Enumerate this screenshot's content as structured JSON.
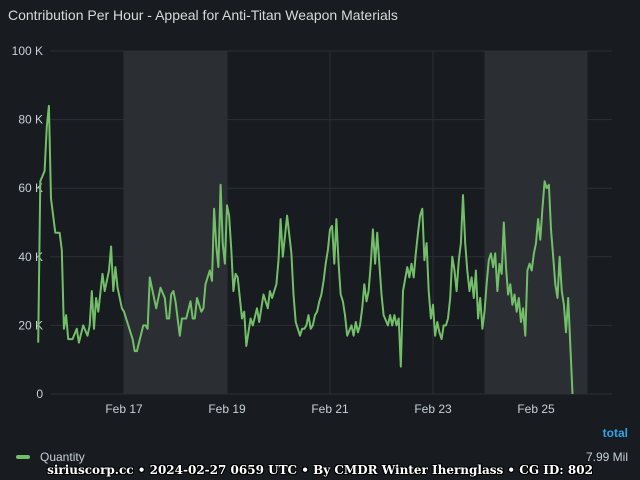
{
  "panel": {
    "title": "Contribution Per Hour - Appeal for Anti-Titan Weapon Materials",
    "legend_header": "total",
    "legend_value": "7.99 Mil",
    "credit": "siriuscorp.cc • 2024-02-27 0659 UTC • By CMDR Winter Ihernglass • CG ID: 802"
  },
  "colors": {
    "background": "#181b1f",
    "series": "#73bf69",
    "band": "#2b2e33",
    "grid": "#2c2f35",
    "legend_header": "#33a2e5"
  },
  "chart_data": {
    "type": "line",
    "title": "Contribution Per Hour - Appeal for Anti-Titan Weapon Materials",
    "xlabel": "",
    "ylabel": "",
    "xlim_days": [
      "2024-02-15 08:00",
      "2024-02-26 22:00"
    ],
    "ylim": [
      0,
      100000
    ],
    "y_ticks": [
      {
        "value": 0,
        "label": "0"
      },
      {
        "value": 20000,
        "label": "20 K"
      },
      {
        "value": 40000,
        "label": "40 K"
      },
      {
        "value": 60000,
        "label": "60 K"
      },
      {
        "value": 80000,
        "label": "80 K"
      },
      {
        "value": 100000,
        "label": "100 K"
      }
    ],
    "x_ticks": [
      {
        "date": "2024-02-17",
        "label": "Feb 17"
      },
      {
        "date": "2024-02-19",
        "label": "Feb 19"
      },
      {
        "date": "2024-02-21",
        "label": "Feb 21"
      },
      {
        "date": "2024-02-23",
        "label": "Feb 23"
      },
      {
        "date": "2024-02-25",
        "label": "Feb 25"
      }
    ],
    "shaded_ranges": [
      [
        "2024-02-17 00:00",
        "2024-02-19 00:00"
      ],
      [
        "2024-02-24 00:00",
        "2024-02-26 00:00"
      ]
    ],
    "grid": true,
    "legend": "bottom-left",
    "series": [
      {
        "name": "Quantity",
        "color": "#73bf69",
        "total": "7.99 Mil",
        "points": [
          [
            "2024-02-15 08:00",
            15000
          ],
          [
            "2024-02-15 09:00",
            62000
          ],
          [
            "2024-02-15 11:00",
            65000
          ],
          [
            "2024-02-15 12:00",
            78000
          ],
          [
            "2024-02-15 13:00",
            84000
          ],
          [
            "2024-02-15 14:00",
            57000
          ],
          [
            "2024-02-15 16:00",
            47000
          ],
          [
            "2024-02-15 18:00",
            47000
          ],
          [
            "2024-02-15 19:00",
            42000
          ],
          [
            "2024-02-15 20:00",
            19000
          ],
          [
            "2024-02-15 21:00",
            23000
          ],
          [
            "2024-02-15 22:00",
            16000
          ],
          [
            "2024-02-16 00:00",
            16000
          ],
          [
            "2024-02-16 02:00",
            19000
          ],
          [
            "2024-02-16 03:00",
            15000
          ],
          [
            "2024-02-16 05:00",
            20000
          ],
          [
            "2024-02-16 07:00",
            17000
          ],
          [
            "2024-02-16 08:00",
            20000
          ],
          [
            "2024-02-16 09:00",
            30000
          ],
          [
            "2024-02-16 10:00",
            19000
          ],
          [
            "2024-02-16 11:00",
            28000
          ],
          [
            "2024-02-16 12:00",
            24000
          ],
          [
            "2024-02-16 14:00",
            35000
          ],
          [
            "2024-02-16 15:00",
            30000
          ],
          [
            "2024-02-16 17:00",
            36000
          ],
          [
            "2024-02-16 18:00",
            43000
          ],
          [
            "2024-02-16 19:00",
            30000
          ],
          [
            "2024-02-16 20:00",
            37000
          ],
          [
            "2024-02-16 21:00",
            31000
          ],
          [
            "2024-02-16 23:00",
            25000
          ],
          [
            "2024-02-17 00:00",
            24000
          ],
          [
            "2024-02-17 02:00",
            20000
          ],
          [
            "2024-02-17 04:00",
            16000
          ],
          [
            "2024-02-17 05:00",
            12500
          ],
          [
            "2024-02-17 06:00",
            12500
          ],
          [
            "2024-02-17 07:00",
            15000
          ],
          [
            "2024-02-17 09:00",
            20000
          ],
          [
            "2024-02-17 10:00",
            20000
          ],
          [
            "2024-02-17 11:00",
            19000
          ],
          [
            "2024-02-17 12:00",
            34000
          ],
          [
            "2024-02-17 13:00",
            31000
          ],
          [
            "2024-02-17 15:00",
            25000
          ],
          [
            "2024-02-17 17:00",
            31000
          ],
          [
            "2024-02-17 19:00",
            28000
          ],
          [
            "2024-02-17 20:00",
            22000
          ],
          [
            "2024-02-17 21:00",
            22000
          ],
          [
            "2024-02-17 22:00",
            29000
          ],
          [
            "2024-02-17 23:00",
            30000
          ],
          [
            "2024-02-18 00:00",
            27000
          ],
          [
            "2024-02-18 02:00",
            17000
          ],
          [
            "2024-02-18 03:00",
            22000
          ],
          [
            "2024-02-18 05:00",
            22000
          ],
          [
            "2024-02-18 07:00",
            27000
          ],
          [
            "2024-02-18 08:00",
            22000
          ],
          [
            "2024-02-18 09:00",
            22000
          ],
          [
            "2024-02-18 10:00",
            28000
          ],
          [
            "2024-02-18 12:00",
            24000
          ],
          [
            "2024-02-18 13:00",
            25000
          ],
          [
            "2024-02-18 14:00",
            32000
          ],
          [
            "2024-02-18 16:00",
            36000
          ],
          [
            "2024-02-18 17:00",
            33000
          ],
          [
            "2024-02-18 18:00",
            54000
          ],
          [
            "2024-02-18 19:00",
            43000
          ],
          [
            "2024-02-18 20:00",
            37000
          ],
          [
            "2024-02-18 21:00",
            61000
          ],
          [
            "2024-02-18 22:00",
            44000
          ],
          [
            "2024-02-18 23:00",
            38000
          ],
          [
            "2024-02-19 00:00",
            55000
          ],
          [
            "2024-02-19 01:00",
            52000
          ],
          [
            "2024-02-19 02:00",
            42000
          ],
          [
            "2024-02-19 03:00",
            30000
          ],
          [
            "2024-02-19 04:00",
            35000
          ],
          [
            "2024-02-19 05:00",
            34000
          ],
          [
            "2024-02-19 07:00",
            22000
          ],
          [
            "2024-02-19 08:00",
            24000
          ],
          [
            "2024-02-19 09:00",
            14000
          ],
          [
            "2024-02-19 11:00",
            22000
          ],
          [
            "2024-02-19 12:00",
            20000
          ],
          [
            "2024-02-19 14:00",
            25000
          ],
          [
            "2024-02-19 15:00",
            21000
          ],
          [
            "2024-02-19 16:00",
            25000
          ],
          [
            "2024-02-19 17:00",
            29000
          ],
          [
            "2024-02-19 19:00",
            25000
          ],
          [
            "2024-02-19 20:00",
            30000
          ],
          [
            "2024-02-19 21:00",
            28000
          ],
          [
            "2024-02-19 23:00",
            32000
          ],
          [
            "2024-02-20 00:00",
            39000
          ],
          [
            "2024-02-20 01:00",
            51000
          ],
          [
            "2024-02-20 02:00",
            40000
          ],
          [
            "2024-02-20 04:00",
            52000
          ],
          [
            "2024-02-20 06:00",
            41000
          ],
          [
            "2024-02-20 07:00",
            29000
          ],
          [
            "2024-02-20 08:00",
            21000
          ],
          [
            "2024-02-20 10:00",
            17000
          ],
          [
            "2024-02-20 11:00",
            19000
          ],
          [
            "2024-02-20 12:00",
            19000
          ],
          [
            "2024-02-20 13:00",
            20000
          ],
          [
            "2024-02-20 14:00",
            23000
          ],
          [
            "2024-02-20 15:00",
            19000
          ],
          [
            "2024-02-20 16:00",
            20000
          ],
          [
            "2024-02-20 17:00",
            23000
          ],
          [
            "2024-02-20 18:00",
            24000
          ],
          [
            "2024-02-20 19:00",
            27000
          ],
          [
            "2024-02-20 20:00",
            29000
          ],
          [
            "2024-02-20 21:00",
            33000
          ],
          [
            "2024-02-20 22:00",
            38000
          ],
          [
            "2024-02-20 23:00",
            42000
          ],
          [
            "2024-02-21 00:00",
            48000
          ],
          [
            "2024-02-21 01:00",
            49000
          ],
          [
            "2024-02-21 02:00",
            38000
          ],
          [
            "2024-02-21 03:00",
            51000
          ],
          [
            "2024-02-21 04:00",
            38000
          ],
          [
            "2024-02-21 05:00",
            29000
          ],
          [
            "2024-02-21 06:00",
            27000
          ],
          [
            "2024-02-21 07:00",
            23000
          ],
          [
            "2024-02-21 08:00",
            17000
          ],
          [
            "2024-02-21 10:00",
            20000
          ],
          [
            "2024-02-21 11:00",
            17000
          ],
          [
            "2024-02-21 12:00",
            21000
          ],
          [
            "2024-02-21 13:00",
            18000
          ],
          [
            "2024-02-21 14:00",
            20000
          ],
          [
            "2024-02-21 15:00",
            25000
          ],
          [
            "2024-02-21 16:00",
            32000
          ],
          [
            "2024-02-21 17:00",
            27000
          ],
          [
            "2024-02-21 18:00",
            30000
          ],
          [
            "2024-02-21 19:00",
            38000
          ],
          [
            "2024-02-21 20:00",
            48000
          ],
          [
            "2024-02-21 21:00",
            38000
          ],
          [
            "2024-02-21 22:00",
            47000
          ],
          [
            "2024-02-22 00:00",
            29000
          ],
          [
            "2024-02-22 01:00",
            23000
          ],
          [
            "2024-02-22 03:00",
            20000
          ],
          [
            "2024-02-22 04:00",
            23000
          ],
          [
            "2024-02-22 05:00",
            20000
          ],
          [
            "2024-02-22 06:00",
            23000
          ],
          [
            "2024-02-22 07:00",
            20000
          ],
          [
            "2024-02-22 08:00",
            22000
          ],
          [
            "2024-02-22 09:00",
            8000
          ],
          [
            "2024-02-22 10:00",
            30000
          ],
          [
            "2024-02-22 12:00",
            37000
          ],
          [
            "2024-02-22 13:00",
            34000
          ],
          [
            "2024-02-22 14:00",
            38000
          ],
          [
            "2024-02-22 15:00",
            34000
          ],
          [
            "2024-02-22 16:00",
            41000
          ],
          [
            "2024-02-22 17:00",
            47000
          ],
          [
            "2024-02-22 18:00",
            52000
          ],
          [
            "2024-02-22 19:00",
            54000
          ],
          [
            "2024-02-22 20:00",
            39000
          ],
          [
            "2024-02-22 21:00",
            44000
          ],
          [
            "2024-02-22 22:00",
            30000
          ],
          [
            "2024-02-22 23:00",
            22000
          ],
          [
            "2024-02-23 00:00",
            26000
          ],
          [
            "2024-02-23 01:00",
            17000
          ],
          [
            "2024-02-23 02:00",
            21000
          ],
          [
            "2024-02-23 03:00",
            18000
          ],
          [
            "2024-02-23 04:00",
            16000
          ],
          [
            "2024-02-23 05:00",
            20000
          ],
          [
            "2024-02-23 06:00",
            20000
          ],
          [
            "2024-02-23 07:00",
            22000
          ],
          [
            "2024-02-23 08:00",
            28000
          ],
          [
            "2024-02-23 09:00",
            40000
          ],
          [
            "2024-02-23 10:00",
            36000
          ],
          [
            "2024-02-23 11:00",
            30000
          ],
          [
            "2024-02-23 12:00",
            39000
          ],
          [
            "2024-02-23 13:00",
            44000
          ],
          [
            "2024-02-23 14:00",
            58000
          ],
          [
            "2024-02-23 15:00",
            44000
          ],
          [
            "2024-02-23 16:00",
            36000
          ],
          [
            "2024-02-23 17:00",
            30000
          ],
          [
            "2024-02-23 18:00",
            34000
          ],
          [
            "2024-02-23 19:00",
            28000
          ],
          [
            "2024-02-23 20:00",
            36000
          ],
          [
            "2024-02-23 21:00",
            22000
          ],
          [
            "2024-02-23 22:00",
            28000
          ],
          [
            "2024-02-23 23:00",
            19000
          ],
          [
            "2024-02-24 00:00",
            24000
          ],
          [
            "2024-02-24 01:00",
            32000
          ],
          [
            "2024-02-24 02:00",
            39000
          ],
          [
            "2024-02-24 03:00",
            41000
          ],
          [
            "2024-02-24 04:00",
            37000
          ],
          [
            "2024-02-24 05:00",
            41000
          ],
          [
            "2024-02-24 06:00",
            30000
          ],
          [
            "2024-02-24 07:00",
            38000
          ],
          [
            "2024-02-24 08:00",
            35000
          ],
          [
            "2024-02-24 09:00",
            50000
          ],
          [
            "2024-02-24 10:00",
            37000
          ],
          [
            "2024-02-24 11:00",
            29000
          ],
          [
            "2024-02-24 12:00",
            32000
          ],
          [
            "2024-02-24 13:00",
            26000
          ],
          [
            "2024-02-24 14:00",
            29000
          ],
          [
            "2024-02-24 15:00",
            24000
          ],
          [
            "2024-02-24 16:00",
            28000
          ],
          [
            "2024-02-24 17:00",
            21000
          ],
          [
            "2024-02-24 18:00",
            25000
          ],
          [
            "2024-02-24 19:00",
            17000
          ],
          [
            "2024-02-24 20:00",
            36000
          ],
          [
            "2024-02-24 21:00",
            38000
          ],
          [
            "2024-02-24 22:00",
            36000
          ],
          [
            "2024-02-24 23:00",
            41000
          ],
          [
            "2024-02-25 00:00",
            44000
          ],
          [
            "2024-02-25 01:00",
            51000
          ],
          [
            "2024-02-25 02:00",
            45000
          ],
          [
            "2024-02-25 03:00",
            54000
          ],
          [
            "2024-02-25 04:00",
            62000
          ],
          [
            "2024-02-25 05:00",
            60000
          ],
          [
            "2024-02-25 06:00",
            61000
          ],
          [
            "2024-02-25 07:00",
            48000
          ],
          [
            "2024-02-25 08:00",
            40000
          ],
          [
            "2024-02-25 09:00",
            32000
          ],
          [
            "2024-02-25 10:00",
            28000
          ],
          [
            "2024-02-25 11:00",
            40000
          ],
          [
            "2024-02-25 12:00",
            30000
          ],
          [
            "2024-02-25 13:00",
            26000
          ],
          [
            "2024-02-25 14:00",
            18000
          ],
          [
            "2024-02-25 15:00",
            28000
          ],
          [
            "2024-02-25 17:00",
            0
          ]
        ]
      }
    ]
  }
}
